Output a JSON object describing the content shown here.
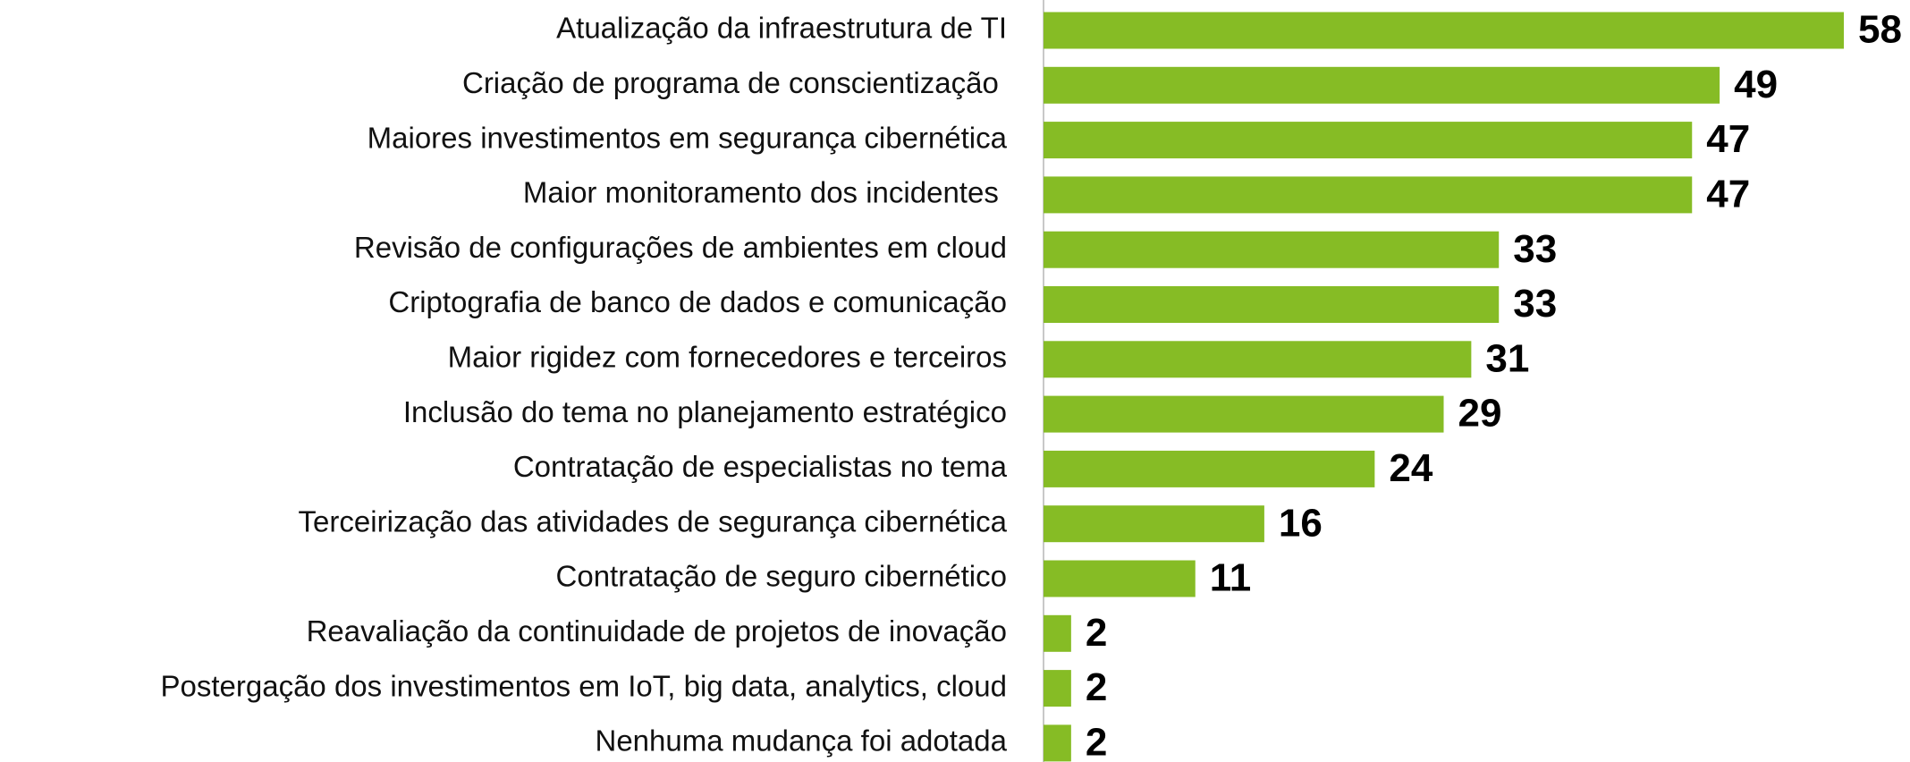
{
  "chart_data": {
    "type": "barh",
    "categories": [
      "Atualização da infraestrutura de TI",
      "Criação de programa de conscientização ",
      "Maiores investimentos em segurança cibernética",
      "Maior monitoramento dos incidentes ",
      "Revisão de configurações de ambientes em cloud",
      "Criptografia de banco de dados e comunicação",
      "Maior rigidez com fornecedores e terceiros",
      "Inclusão do tema no planejamento estratégico",
      "Contratação de especialistas no tema",
      "Terceirização das atividades de segurança cibernética",
      "Contratação de seguro cibernético",
      "Reavaliação da continuidade de projetos de inovação",
      "Postergação dos investimentos em IoT, big data, analytics, cloud",
      "Nenhuma mudança foi adotada"
    ],
    "values": [
      58,
      49,
      47,
      47,
      33,
      33,
      31,
      29,
      24,
      16,
      11,
      2,
      2,
      2
    ],
    "color": "#86bc25"
  }
}
